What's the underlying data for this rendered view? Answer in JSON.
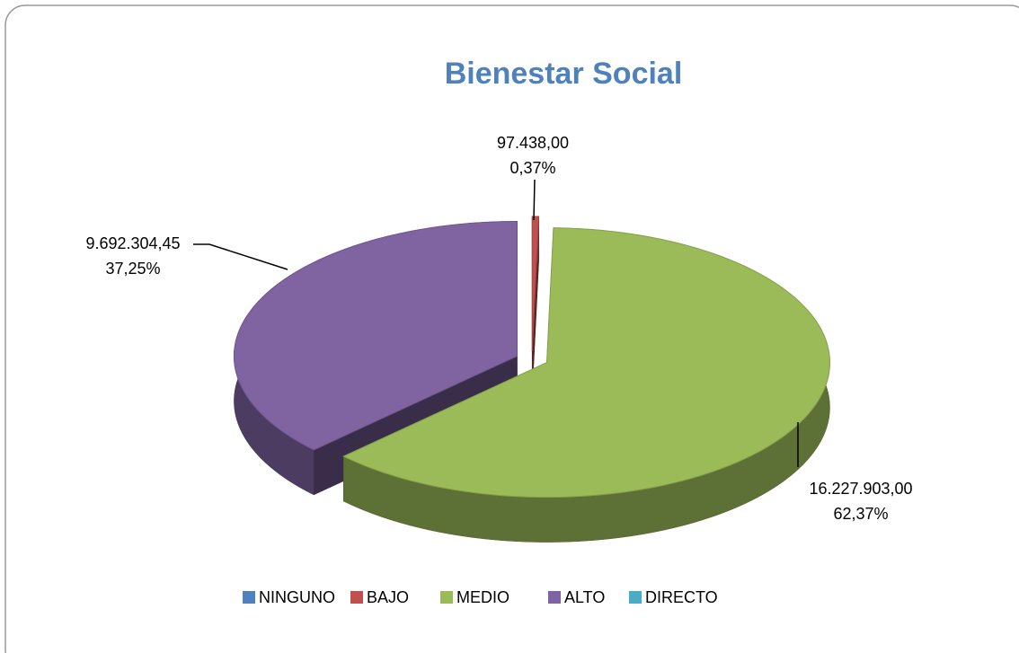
{
  "chart_data": {
    "type": "pie3d",
    "title": "Bienestar Social",
    "categories": [
      "NINGUNO",
      "BAJO",
      "MEDIO",
      "ALTO",
      "DIRECTO"
    ],
    "values": [
      0,
      97438,
      16227903,
      9692304.45,
      0
    ],
    "value_labels": [
      null,
      "97.438,00",
      "16.227.903,00",
      "9.692.304,45",
      null
    ],
    "percents": [
      0,
      0.37,
      62.37,
      37.25,
      0
    ],
    "percent_labels": [
      null,
      "0,37%",
      "62,37%",
      "37,25%",
      null
    ],
    "colors": [
      "#4f81bd",
      "#c0504d",
      "#9bbb59",
      "#8064a2",
      "#4bacc6"
    ],
    "legend": "bottom"
  }
}
